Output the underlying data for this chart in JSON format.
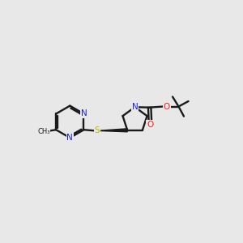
{
  "bg_color": "#e8e8e8",
  "bond_color": "#1a1a1a",
  "N_color": "#1a1aff",
  "O_color": "#ff1a1a",
  "S_color": "#b8b800",
  "line_width": 1.7,
  "font_size": 7.5,
  "xlim": [
    0,
    10
  ],
  "ylim": [
    2,
    8
  ]
}
